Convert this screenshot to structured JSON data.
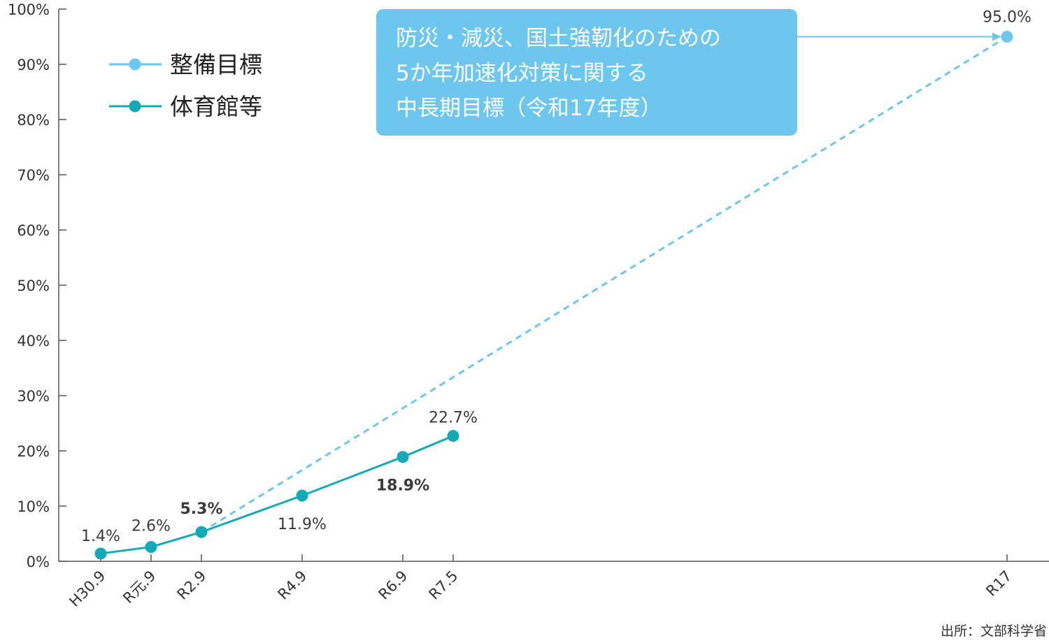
{
  "chart_data": {
    "type": "line",
    "categories": [
      "H30.9",
      "R元.9",
      "R2.9",
      "R4.9",
      "R6.9",
      "R7.5",
      "R17"
    ],
    "y_ticks": [
      "0%",
      "10%",
      "20%",
      "30%",
      "40%",
      "50%",
      "60%",
      "70%",
      "80%",
      "90%",
      "100%"
    ],
    "ylim": [
      0,
      100
    ],
    "grid": false,
    "legend_position": "top-left",
    "series": [
      {
        "name": "整備目標",
        "color": "#6cc6ee",
        "style": "dashed",
        "points": [
          {
            "x": "R2.9",
            "y": 5.3
          },
          {
            "x": "R17",
            "y": 95.0,
            "label": "95.0%"
          }
        ]
      },
      {
        "name": "体育館等",
        "color": "#11aab6",
        "style": "solid",
        "points": [
          {
            "x": "H30.9",
            "y": 1.4,
            "label": "1.4%"
          },
          {
            "x": "R元.9",
            "y": 2.6,
            "label": "2.6%"
          },
          {
            "x": "R2.9",
            "y": 5.3,
            "label": "5.3%",
            "bold": true
          },
          {
            "x": "R4.9",
            "y": 11.9,
            "label": "11.9%"
          },
          {
            "x": "R6.9",
            "y": 18.9,
            "label": "18.9%",
            "bold": true
          },
          {
            "x": "R7.5",
            "y": 22.7,
            "label": "22.7%"
          }
        ]
      }
    ],
    "annotation": {
      "lines": [
        "防災・減災、国土強靭化のための",
        "5か年加速化対策に関する",
        "中長期目標（令和17年度）"
      ],
      "color": "#6cc6ee",
      "points_to": "R17"
    },
    "source": "出所：文部科学省"
  }
}
